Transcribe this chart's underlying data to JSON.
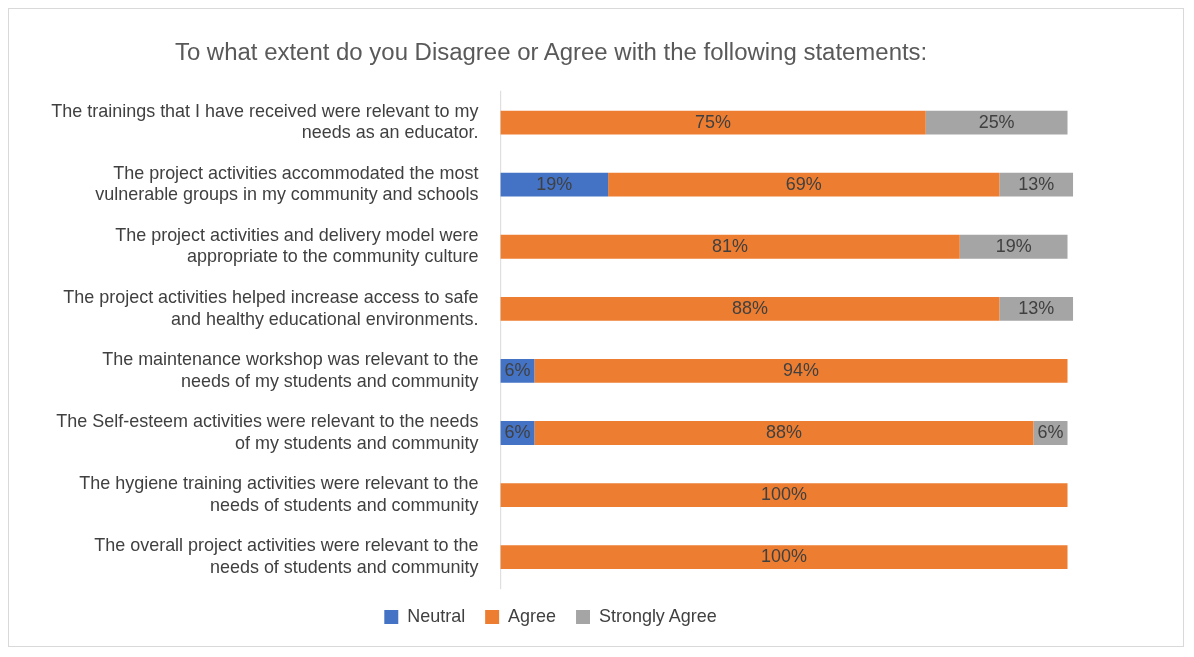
{
  "chart_data": {
    "type": "bar",
    "orientation": "horizontal",
    "stacked": true,
    "title": "To what extent do you Disagree or Agree with the following statements:",
    "categories": [
      "The trainings that I have received were relevant to my needs as an educator.",
      "The project activities accommodated the most vulnerable groups in my community and schools",
      "The project activities and delivery model were appropriate to the community culture",
      "The project activities helped increase access to safe and healthy educational environments.",
      "The maintenance workshop was relevant to the needs of my students and community",
      "The Self-esteem activities were relevant to the needs of my students and community",
      "The hygiene training activities were relevant to the needs of students and community",
      "The overall project activities were relevant to the needs of students and community"
    ],
    "series": [
      {
        "name": "Neutral",
        "color": "#4472c4",
        "values": [
          null,
          19,
          null,
          null,
          6,
          6,
          null,
          null
        ],
        "value_labels": [
          null,
          "19%",
          null,
          null,
          "6%",
          "6%",
          null,
          null
        ]
      },
      {
        "name": "Agree",
        "color": "#ed7d31",
        "values": [
          75,
          69,
          81,
          88,
          94,
          88,
          100,
          100
        ],
        "value_labels": [
          "75%",
          "69%",
          "81%",
          "88%",
          "94%",
          "88%",
          "100%",
          "100%"
        ]
      },
      {
        "name": "Strongly Agree",
        "color": "#a5a5a5",
        "values": [
          25,
          13,
          19,
          13,
          null,
          6,
          null,
          null
        ],
        "value_labels": [
          "25%",
          "13%",
          "19%",
          "13%",
          null,
          "6%",
          null,
          null
        ]
      }
    ],
    "legend": "bottom"
  }
}
